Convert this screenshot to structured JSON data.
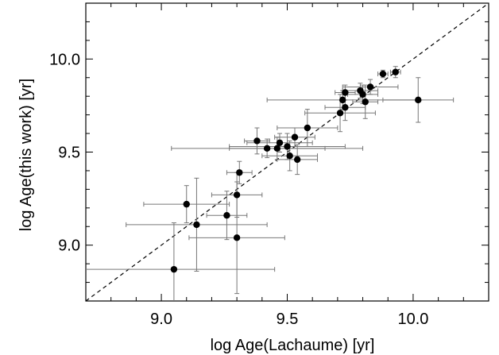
{
  "chart_data": {
    "type": "scatter",
    "title": "",
    "xlabel": "log Age(Lachaume) [yr]",
    "ylabel": "log Age(this work) [yr]",
    "xlim": [
      8.7,
      10.3
    ],
    "ylim": [
      8.7,
      10.3
    ],
    "xticks": [
      9.0,
      9.5,
      10.0
    ],
    "yticks": [
      9.0,
      9.5,
      10.0
    ],
    "xtick_labels": [
      "9.0",
      "9.5",
      "10.0"
    ],
    "ytick_labels": [
      "9.0",
      "9.5",
      "10.0"
    ],
    "grid": false,
    "reference_line": {
      "type": "one-to-one",
      "style": "dashed"
    },
    "points": [
      {
        "x": 9.05,
        "y": 8.87,
        "xerr": 0.4,
        "yerr": 0.25
      },
      {
        "x": 9.14,
        "y": 9.11,
        "xerr": 0.28,
        "yerr": 0.25
      },
      {
        "x": 9.1,
        "y": 9.22,
        "xerr": 0.17,
        "yerr": 0.1
      },
      {
        "x": 9.26,
        "y": 9.16,
        "xerr": 0.08,
        "yerr": 0.13
      },
      {
        "x": 9.3,
        "y": 9.27,
        "xerr": 0.1,
        "yerr": 0.12
      },
      {
        "x": 9.3,
        "y": 9.04,
        "xerr": 0.19,
        "yerr": 0.3
      },
      {
        "x": 9.31,
        "y": 9.39,
        "xerr": 0.05,
        "yerr": 0.06
      },
      {
        "x": 9.38,
        "y": 9.56,
        "xerr": 0.05,
        "yerr": 0.07
      },
      {
        "x": 9.42,
        "y": 9.52,
        "xerr": 0.38,
        "yerr": 0.05
      },
      {
        "x": 9.46,
        "y": 9.52,
        "xerr": 0.19,
        "yerr": 0.06
      },
      {
        "x": 9.47,
        "y": 9.55,
        "xerr": 0.13,
        "yerr": 0.05
      },
      {
        "x": 9.5,
        "y": 9.53,
        "xerr": 0.23,
        "yerr": 0.07
      },
      {
        "x": 9.51,
        "y": 9.48,
        "xerr": 0.11,
        "yerr": 0.08
      },
      {
        "x": 9.53,
        "y": 9.58,
        "xerr": 0.08,
        "yerr": 0.05
      },
      {
        "x": 9.54,
        "y": 9.46,
        "xerr": 0.08,
        "yerr": 0.08
      },
      {
        "x": 9.58,
        "y": 9.63,
        "xerr": 0.12,
        "yerr": 0.1
      },
      {
        "x": 9.71,
        "y": 9.71,
        "xerr": 0.14,
        "yerr": 0.1
      },
      {
        "x": 9.72,
        "y": 9.78,
        "xerr": 0.3,
        "yerr": 0.05
      },
      {
        "x": 9.73,
        "y": 9.74,
        "xerr": 0.08,
        "yerr": 0.07
      },
      {
        "x": 9.73,
        "y": 9.82,
        "xerr": 0.04,
        "yerr": 0.04
      },
      {
        "x": 9.79,
        "y": 9.83,
        "xerr": 0.07,
        "yerr": 0.04
      },
      {
        "x": 9.8,
        "y": 9.81,
        "xerr": 0.06,
        "yerr": 0.05
      },
      {
        "x": 9.81,
        "y": 9.77,
        "xerr": 0.05,
        "yerr": 0.09
      },
      {
        "x": 9.83,
        "y": 9.85,
        "xerr": 0.11,
        "yerr": 0.04
      },
      {
        "x": 9.88,
        "y": 9.92,
        "xerr": 0.02,
        "yerr": 0.02
      },
      {
        "x": 9.93,
        "y": 9.93,
        "xerr": 0.02,
        "yerr": 0.03
      },
      {
        "x": 10.02,
        "y": 9.78,
        "xerr": 0.14,
        "yerr": 0.12
      }
    ]
  }
}
